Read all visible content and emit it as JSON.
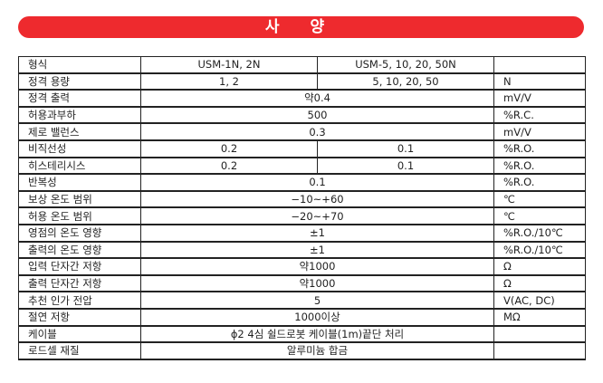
{
  "title": "사 양",
  "colors": {
    "banner": "#ee2a2e"
  },
  "header": {
    "label": "형식",
    "model_a": "USM-1N, 2N",
    "model_b": "USM-5, 10, 20, 50N",
    "unit": ""
  },
  "rows": [
    {
      "label": "정격 용량",
      "a": "1, 2",
      "b": "5, 10, 20, 50",
      "unit": "N"
    },
    {
      "label": "정격 출력",
      "value": "약0.4",
      "unit": "mV/V"
    },
    {
      "label": "허용과부하",
      "value": "500",
      "unit": "%R.C."
    },
    {
      "label": "제로 밸런스",
      "value": "0.3",
      "unit": "mV/V"
    },
    {
      "label": "비직선성",
      "a": "0.2",
      "b": "0.1",
      "unit": "%R.O."
    },
    {
      "label": "히스테리시스",
      "a": "0.2",
      "b": "0.1",
      "unit": "%R.O."
    },
    {
      "label": "반복성",
      "value": "0.1",
      "unit": "%R.O."
    },
    {
      "label": "보상 온도 범위",
      "value": "−10~+60",
      "unit": "℃"
    },
    {
      "label": "허용 온도 범위",
      "value": "−20~+70",
      "unit": "℃"
    },
    {
      "label": "영점의 온도 영향",
      "value": "±1",
      "unit": "%R.O./10℃"
    },
    {
      "label": "출력의 온도 영향",
      "value": "±1",
      "unit": "%R.O./10℃"
    },
    {
      "label": "입력 단자간 저항",
      "value": "약1000",
      "unit": "Ω"
    },
    {
      "label": "출력 단자간 저항",
      "value": "약1000",
      "unit": "Ω"
    },
    {
      "label": "추천 인가 전압",
      "value": "5",
      "unit": "V(AC, DC)"
    },
    {
      "label": "절연 저항",
      "value": "1000이상",
      "unit": "MΩ"
    },
    {
      "label": "케이블",
      "value": "ϕ2 4심 쉴드로봇 케이블(1m)끝단 처리",
      "unit": ""
    },
    {
      "label": "로드셀 재질",
      "value": "알루미늄 합금",
      "unit": ""
    }
  ]
}
